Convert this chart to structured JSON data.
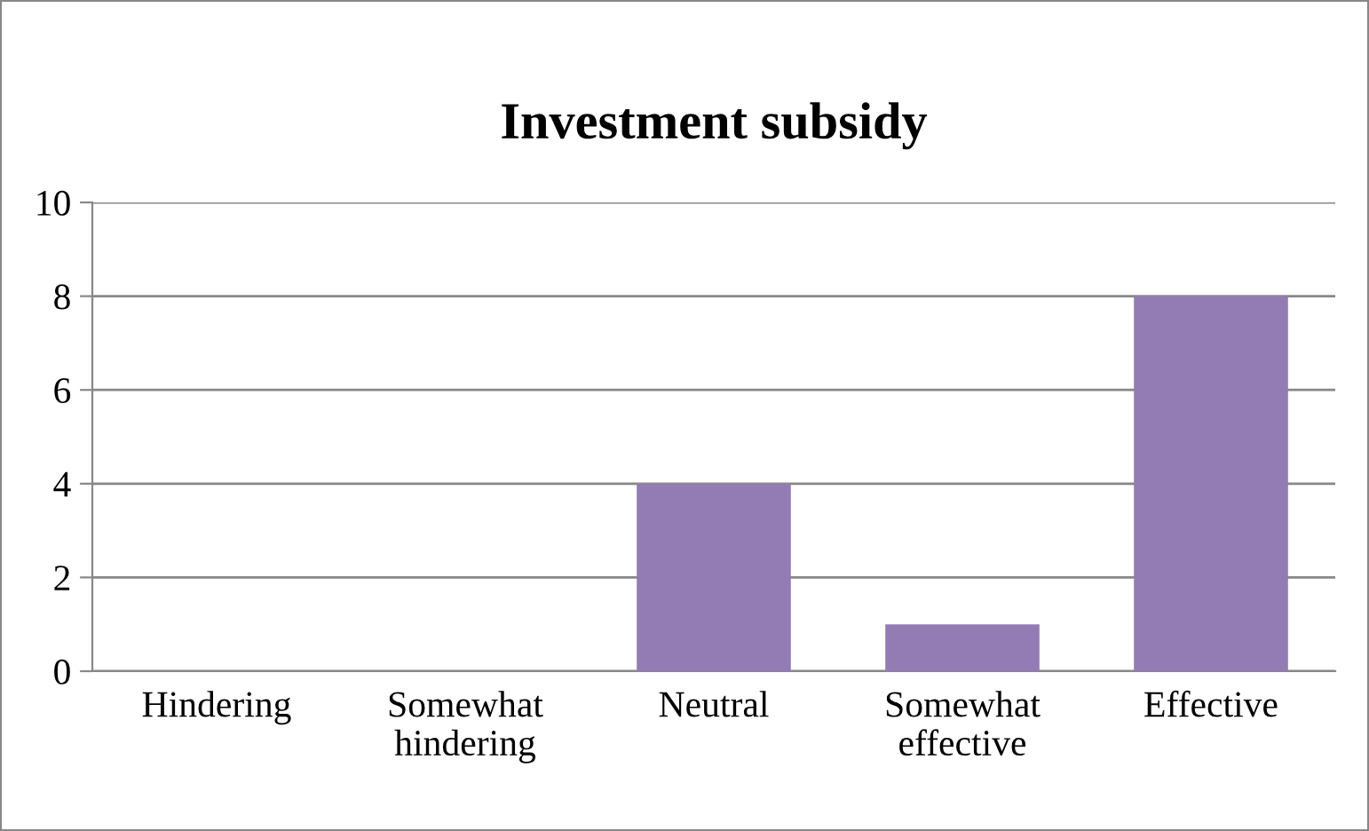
{
  "chart_data": {
    "type": "bar",
    "title": "Investment subsidy",
    "categories": [
      "Hindering",
      "Somewhat\nhindering",
      "Neutral",
      "Somewhat\neffective",
      "Effective"
    ],
    "values": [
      0,
      0,
      4,
      1,
      8
    ],
    "color": "#937cb4",
    "ylim": [
      0,
      10
    ],
    "yticks": [
      0,
      2,
      4,
      6,
      8,
      10
    ],
    "grid": "y",
    "legend": false
  }
}
